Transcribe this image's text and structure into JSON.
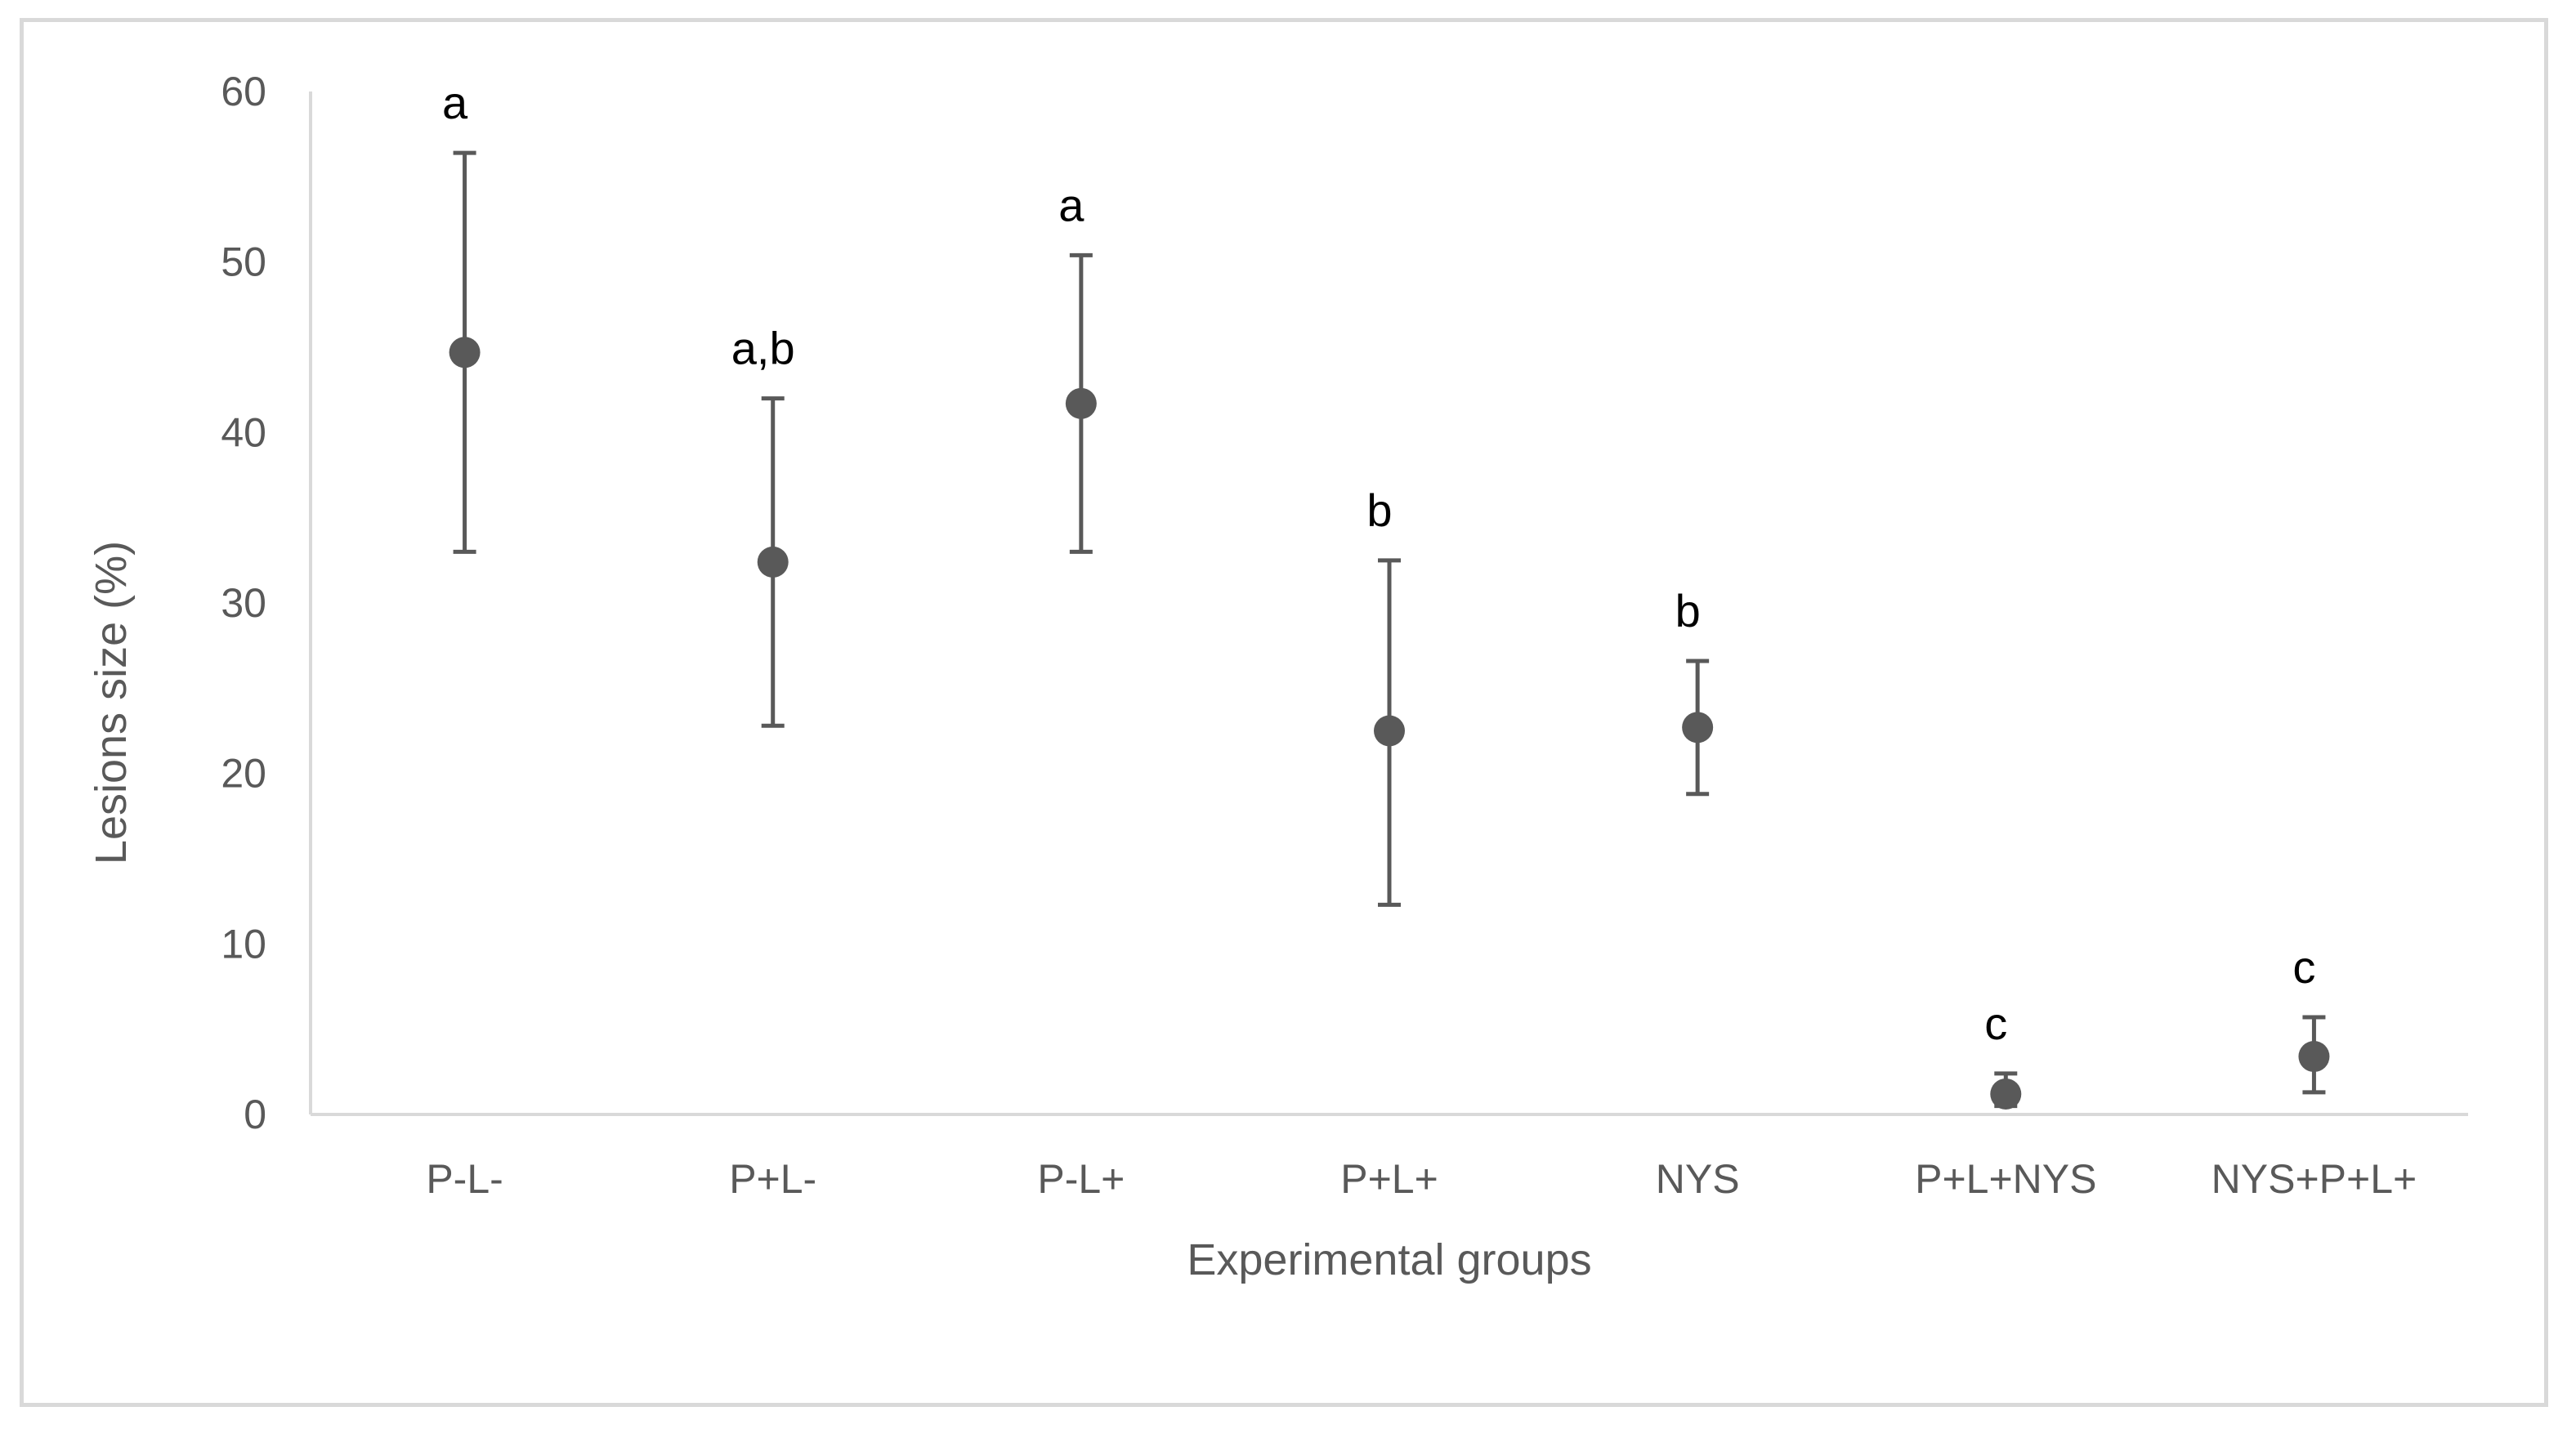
{
  "chart_data": {
    "type": "scatter",
    "title": "",
    "xlabel": "Experimental groups",
    "ylabel": "Lesions size (%)",
    "ylim": [
      0,
      60
    ],
    "yticks": [
      0,
      10,
      20,
      30,
      40,
      50,
      60
    ],
    "grid": false,
    "legend": "none",
    "categories": [
      "P-L-",
      "P+L-",
      "P-L+",
      "P+L+",
      "NYS",
      "P+L+NYS",
      "NYS+P+L+"
    ],
    "series": [
      {
        "values": [
          44.7,
          32.4,
          41.7,
          22.5,
          22.7,
          1.2,
          3.4
        ],
        "error_low": [
          33.0,
          22.8,
          33.0,
          12.3,
          18.8,
          0.5,
          1.3
        ],
        "error_high": [
          56.4,
          42.0,
          50.4,
          32.5,
          26.6,
          2.4,
          5.7
        ],
        "significance": [
          "a",
          "a,b",
          "a",
          "b",
          "b",
          "c",
          "c"
        ]
      }
    ],
    "colors": {
      "marker": "#595959",
      "errorbar": "#595959",
      "axis": "#d9d9d9",
      "frame": "#d9d9d9",
      "tick_text": "#595959",
      "letters": "#000000"
    }
  }
}
